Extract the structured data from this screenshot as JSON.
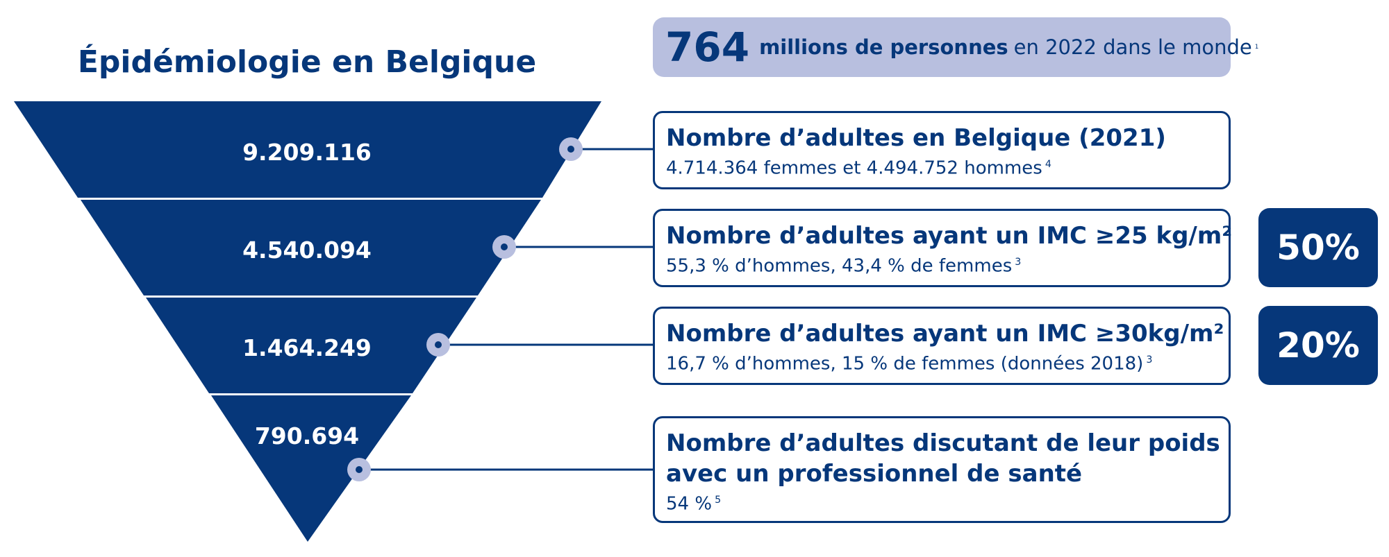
{
  "title": "Épidémiologie en Belgique",
  "headline": {
    "number": "764",
    "bold_text": "millions de personnes",
    "rest_text": "en 2022 dans le monde",
    "ref": "1"
  },
  "funnel": [
    {
      "value": "9.209.116",
      "title": "Nombre d’adultes en Belgique (2021)",
      "subtitle": "4.714.364 femmes et 4.494.752 hommes",
      "ref": "4",
      "percent": ""
    },
    {
      "value": "4.540.094",
      "title": "Nombre d’adultes ayant un IMC ≥25 kg/m²",
      "subtitle": "55,3 % d’hommes, 43,4 % de femmes",
      "ref": "3",
      "percent": "50%"
    },
    {
      "value": "1.464.249",
      "title": "Nombre d’adultes ayant un IMC ≥30kg/m²",
      "subtitle": "16,7 % d’hommes, 15 % de femmes (données 2018)",
      "ref": "3",
      "percent": "20%"
    },
    {
      "value": "790.694",
      "title": "Nombre d’adultes discutant de leur poids",
      "title_line2": "avec un professionnel de santé",
      "subtitle": "54 %",
      "ref": "5",
      "percent": ""
    }
  ],
  "colors": {
    "navy": "#06377a",
    "light": "#b8bfdf"
  }
}
